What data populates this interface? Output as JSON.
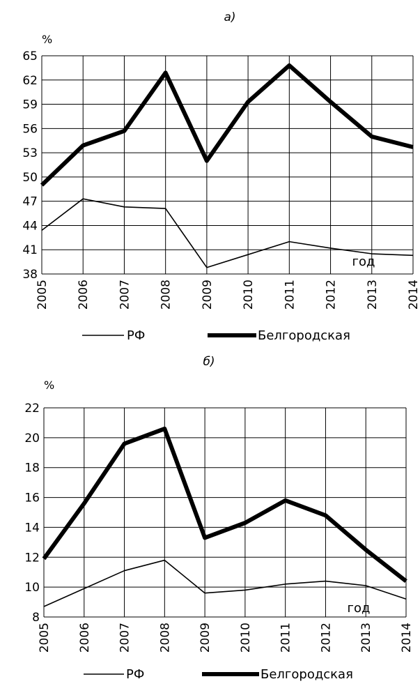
{
  "chart_data": [
    {
      "type": "line",
      "caption": "а)",
      "y_unit": "%",
      "annotation": "год",
      "categories": [
        "2005",
        "2006",
        "2007",
        "2008",
        "2009",
        "2010",
        "2011",
        "2012",
        "2013",
        "2014"
      ],
      "ylim": [
        38,
        65
      ],
      "yticks": [
        38,
        41,
        44,
        47,
        50,
        53,
        56,
        59,
        62,
        65
      ],
      "grid": true,
      "legend_position": "bottom",
      "series": [
        {
          "name": "РФ",
          "values": [
            43.4,
            47.3,
            46.3,
            46.1,
            38.8,
            40.4,
            42.0,
            41.2,
            40.5,
            40.3
          ],
          "color": "#000000",
          "line_width": "thin"
        },
        {
          "name": "Белгородская",
          "values": [
            49.0,
            53.9,
            55.7,
            62.9,
            52.0,
            59.3,
            63.8,
            59.3,
            55.0,
            53.7
          ],
          "color": "#000000",
          "line_width": "thick"
        }
      ]
    },
    {
      "type": "line",
      "caption": "б)",
      "y_unit": "%",
      "annotation": "год",
      "categories": [
        "2005",
        "2006",
        "2007",
        "2008",
        "2009",
        "2010",
        "2011",
        "2012",
        "2013",
        "2014"
      ],
      "ylim": [
        8,
        22
      ],
      "yticks": [
        8,
        10,
        12,
        14,
        16,
        18,
        20,
        22
      ],
      "grid": true,
      "legend_position": "bottom",
      "series": [
        {
          "name": "РФ",
          "values": [
            8.7,
            9.9,
            11.1,
            11.8,
            9.6,
            9.8,
            10.2,
            10.4,
            10.1,
            9.2
          ],
          "color": "#000000",
          "line_width": "thin"
        },
        {
          "name": "Белгородская",
          "values": [
            11.9,
            15.6,
            19.6,
            20.6,
            13.3,
            14.3,
            15.8,
            14.8,
            12.5,
            10.4
          ],
          "color": "#000000",
          "line_width": "thick"
        }
      ]
    }
  ]
}
